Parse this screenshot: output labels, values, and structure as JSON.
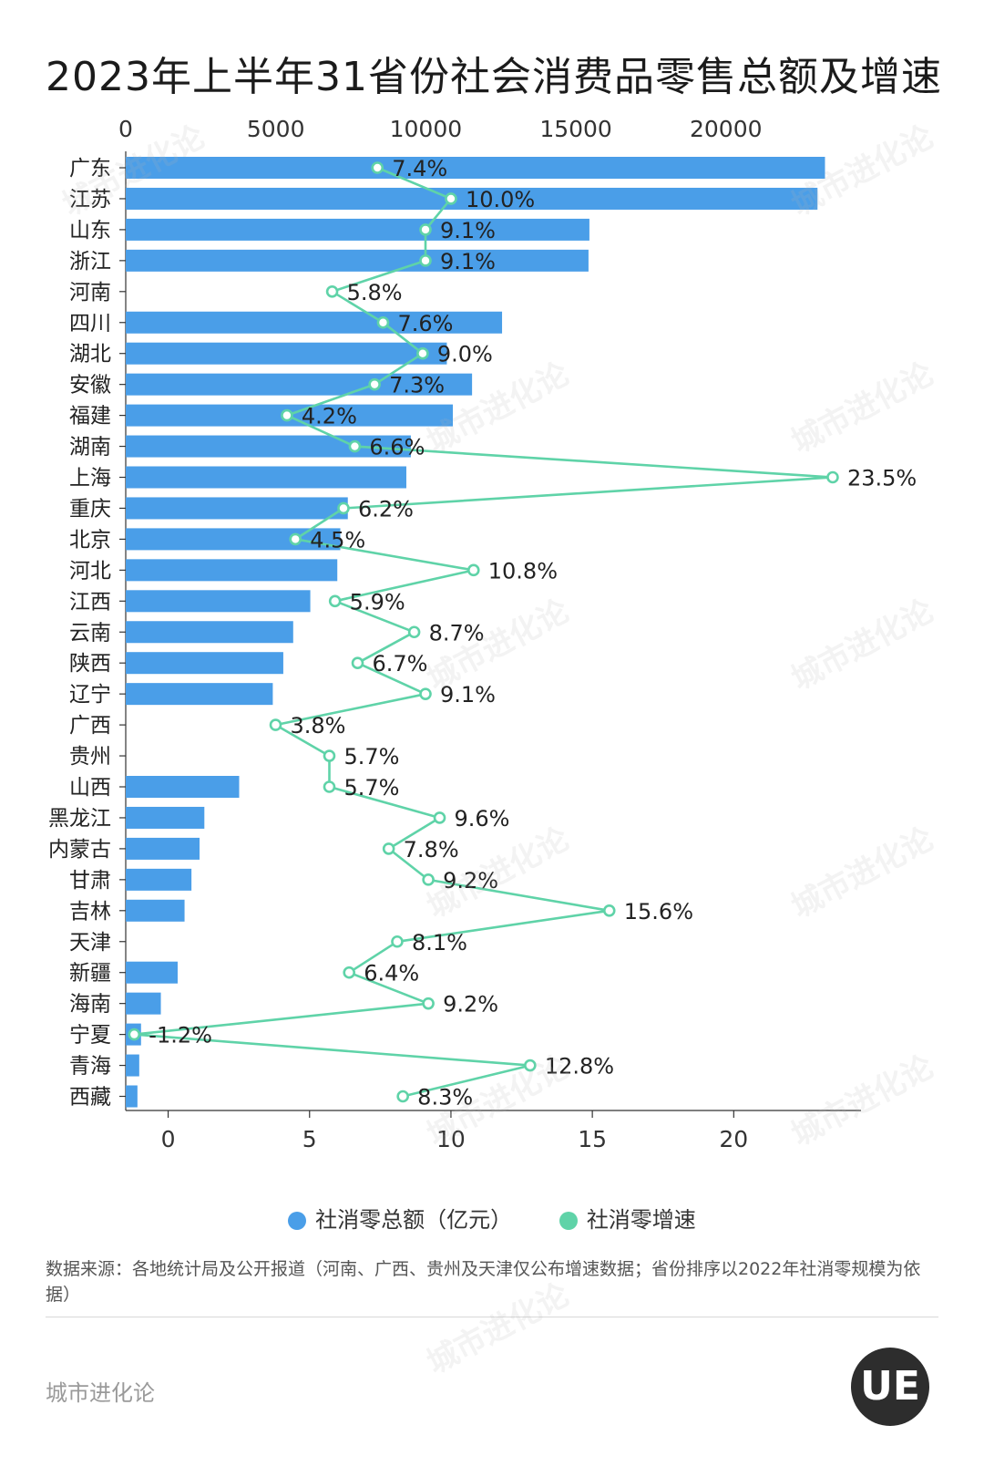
{
  "title": "2023年上半年31省份社会消费品零售总额及增速",
  "legend": {
    "sales_label": "社消零总额（亿元）",
    "growth_label": "社消零增速",
    "sales_color": "#4a9ee8",
    "growth_color": "#5fd3a8"
  },
  "source": "数据来源：各地统计局及公开报道（河南、广西、贵州及天津仅公布增速数据；省份排序以2022年社消零规模为依据）",
  "brand": "城市进化论",
  "logo_text": "UE",
  "watermark": "城市进化论",
  "chart_data": {
    "type": "bar",
    "orientation": "horizontal",
    "title": "2023年上半年31省份社会消费品零售总额及增速",
    "categories": [
      "广东",
      "江苏",
      "山东",
      "浙江",
      "河南",
      "四川",
      "湖北",
      "安徽",
      "福建",
      "湖南",
      "上海",
      "重庆",
      "北京",
      "河北",
      "江西",
      "云南",
      "陕西",
      "辽宁",
      "广西",
      "贵州",
      "山西",
      "黑龙江",
      "内蒙古",
      "甘肃",
      "吉林",
      "天津",
      "新疆",
      "海南",
      "宁夏",
      "青海",
      "西藏"
    ],
    "top_axis": {
      "ticks": [
        0,
        5000,
        10000,
        15000,
        20000
      ],
      "lim": [
        0,
        24500
      ]
    },
    "bottom_axis": {
      "ticks": [
        0,
        5,
        10,
        15,
        20
      ],
      "lim": [
        -1.5,
        24.5
      ]
    },
    "series": [
      {
        "name": "社消零总额（亿元）",
        "type": "bar",
        "axis": "top",
        "values": [
          23300,
          23050,
          15450,
          15420,
          null,
          12540,
          10700,
          11540,
          10900,
          9500,
          9350,
          7400,
          7150,
          7050,
          6150,
          5580,
          5250,
          4900,
          null,
          null,
          3780,
          2620,
          2460,
          2190,
          1960,
          null,
          1730,
          1170,
          510,
          450,
          390
        ]
      },
      {
        "name": "社消零增速",
        "type": "line",
        "axis": "bottom",
        "values": [
          7.4,
          10.0,
          9.1,
          9.1,
          5.8,
          7.6,
          9.0,
          7.3,
          4.2,
          6.6,
          23.5,
          6.2,
          4.5,
          10.8,
          5.9,
          8.7,
          6.7,
          9.1,
          3.8,
          5.7,
          5.7,
          9.6,
          7.8,
          9.2,
          15.6,
          8.1,
          6.4,
          9.2,
          -1.2,
          12.8,
          8.3
        ],
        "labels": [
          "7.4%",
          "10.0%",
          "9.1%",
          "9.1%",
          "5.8%",
          "7.6%",
          "9.0%",
          "7.3%",
          "4.2%",
          "6.6%",
          "23.5%",
          "6.2%",
          "4.5%",
          "10.8%",
          "5.9%",
          "8.7%",
          "6.7%",
          "9.1%",
          "3.8%",
          "5.7%",
          "5.7%",
          "9.6%",
          "7.8%",
          "9.2%",
          "15.6%",
          "8.1%",
          "6.4%",
          "9.2%",
          "-1.2%",
          "12.8%",
          "8.3%"
        ]
      }
    ],
    "grid": false,
    "legend_position": "bottom"
  }
}
